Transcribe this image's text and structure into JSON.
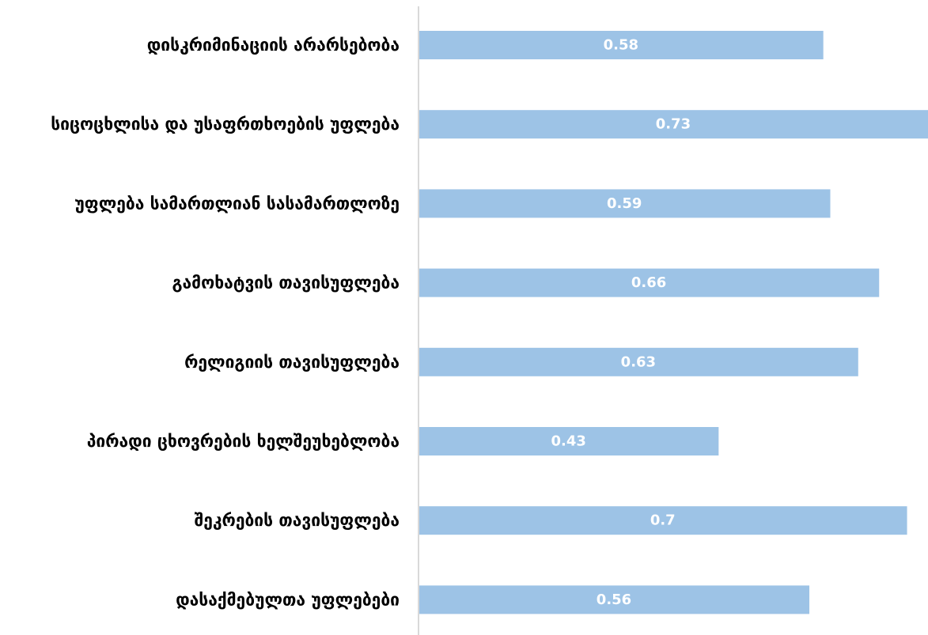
{
  "chart_data": {
    "type": "bar",
    "orientation": "horizontal",
    "categories": [
      "დისკრიმინაციის არარსებობა",
      "სიცოცხლისა და უსაფრთხოების უფლება",
      "უფლება სამართლიან სასამართლოზე",
      "გამოხატვის თავისუფლება",
      "რელიგიის თავისუფლება",
      "პირადი ცხოვრების ხელშეუხებლობა",
      "შეკრების თავისუფლება",
      "დასაქმებულთა უფლებები"
    ],
    "values": [
      0.58,
      0.73,
      0.59,
      0.66,
      0.63,
      0.43,
      0.7,
      0.56
    ],
    "data_labels": [
      "0.58",
      "0.73",
      "0.59",
      "0.66",
      "0.63",
      "0.43",
      "0.7",
      "0.56"
    ],
    "xlim": [
      0,
      0.73
    ],
    "grid": false,
    "legend": "none",
    "colors": {
      "bar": "#9DC3E6",
      "axis": "#D9D9D9",
      "label": "#000000",
      "data_label": "#FFFFFF"
    }
  }
}
